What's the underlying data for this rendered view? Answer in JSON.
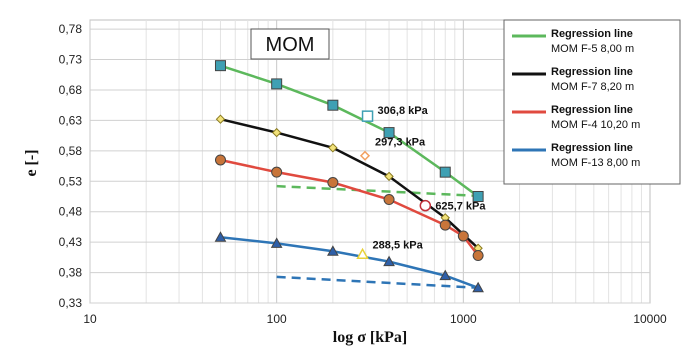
{
  "chart_data": {
    "type": "line",
    "title": "MOM",
    "xlabel": "log σ [kPa]",
    "ylabel": "e [-]",
    "xscale": "log",
    "xlim": [
      10,
      10000
    ],
    "ylim": [
      0.33,
      0.8
    ],
    "x_ticks": [
      "10",
      "100",
      "1000",
      "10000"
    ],
    "y_ticks": [
      "0,78",
      "0,73",
      "0,68",
      "0,63",
      "0,58",
      "0,53",
      "0,48",
      "0,43",
      "0,38",
      "0,33"
    ],
    "grid": true,
    "legend_position": "right",
    "legend": [
      {
        "title": "Regression line",
        "label": "MOM F-5 8,00 m",
        "color": "#5cb85c"
      },
      {
        "title": "Regression line",
        "label": "MOM F-7 8,20 m",
        "color": "#111111"
      },
      {
        "title": "Regression line",
        "label": "MOM F-4 10,20 m",
        "color": "#e04a3f"
      },
      {
        "title": "Regression line",
        "label": "MOM F-13 8,00 m",
        "color": "#2e75b6"
      }
    ],
    "series": [
      {
        "name": "MOM F-5 8,00 m",
        "color": "#5cb85c",
        "marker": "square",
        "marker_color": "#3fa0b3",
        "x": [
          50,
          100,
          200,
          400,
          800,
          1200
        ],
        "y": [
          0.72,
          0.69,
          0.655,
          0.61,
          0.545,
          0.505
        ]
      },
      {
        "name": "MOM F-7 8,20 m",
        "color": "#111111",
        "marker": "diamond",
        "marker_color": "#f2e27a",
        "x": [
          50,
          100,
          200,
          400,
          800,
          1200
        ],
        "y": [
          0.632,
          0.61,
          0.585,
          0.538,
          0.47,
          0.42
        ]
      },
      {
        "name": "MOM F-4 10,20 m",
        "color": "#e04a3f",
        "marker": "circle",
        "marker_color": "#c8753a",
        "x": [
          50,
          100,
          200,
          400,
          800,
          1000,
          1200
        ],
        "y": [
          0.565,
          0.545,
          0.528,
          0.5,
          0.458,
          0.44,
          0.408
        ]
      },
      {
        "name": "MOM F-13 8,00 m",
        "color": "#2e75b6",
        "marker": "triangle",
        "marker_color": "#2e5fa8",
        "x": [
          50,
          100,
          200,
          400,
          800,
          1200
        ],
        "y": [
          0.438,
          0.428,
          0.415,
          0.398,
          0.375,
          0.355
        ]
      }
    ],
    "regression_lines": [
      {
        "color": "#5cb85c",
        "x": [
          100,
          1200
        ],
        "y": [
          0.522,
          0.506
        ]
      },
      {
        "color": "#2e75b6",
        "x": [
          100,
          1200
        ],
        "y": [
          0.373,
          0.355
        ]
      }
    ],
    "annotations": [
      {
        "text": "306,8 kPa",
        "x": 306.8,
        "y": 0.637,
        "marker_color": "#3fa0b3",
        "shape": "square"
      },
      {
        "text": "297,3 kPa",
        "x": 297.3,
        "y": 0.572,
        "marker_color": "#f2a060",
        "shape": "diamond"
      },
      {
        "text": "625,7 kPa",
        "x": 625.7,
        "y": 0.49,
        "marker_color": "#c0303a",
        "shape": "circle"
      },
      {
        "text": "288,5 kPa",
        "x": 288.5,
        "y": 0.41,
        "marker_color": "#e8d23a",
        "shape": "triangle"
      }
    ]
  }
}
